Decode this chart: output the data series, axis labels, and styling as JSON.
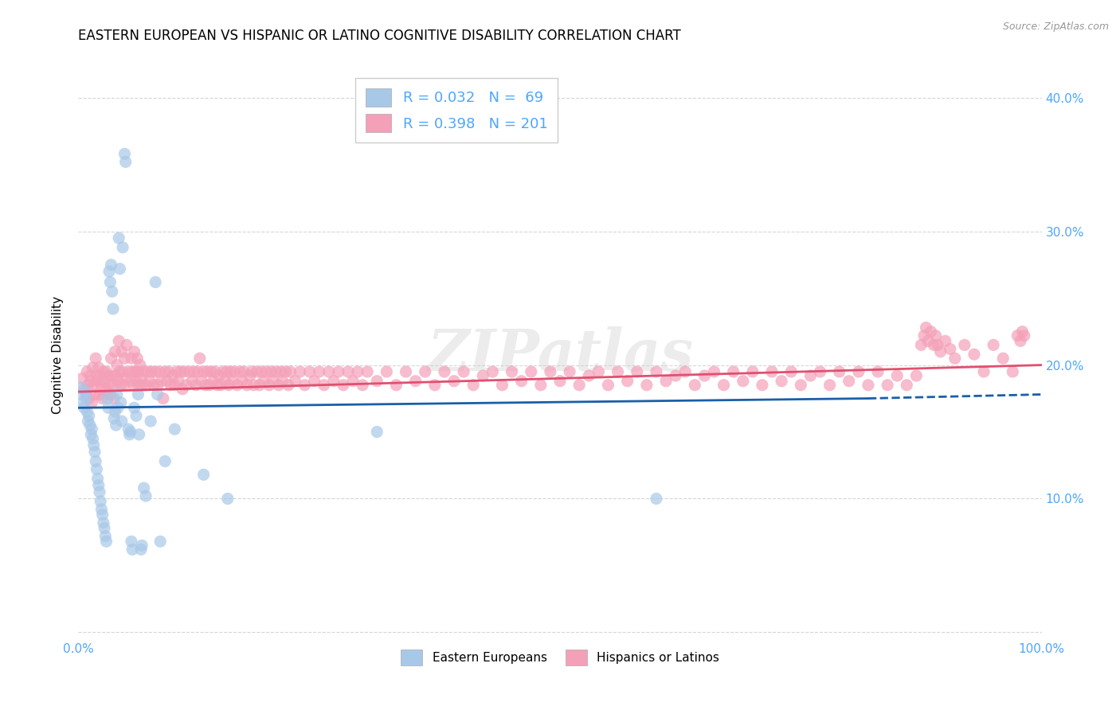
{
  "title": "EASTERN EUROPEAN VS HISPANIC OR LATINO COGNITIVE DISABILITY CORRELATION CHART",
  "source": "Source: ZipAtlas.com",
  "ylabel": "Cognitive Disability",
  "xlim": [
    0.0,
    1.0
  ],
  "ylim": [
    -0.005,
    0.42
  ],
  "blue_R": 0.032,
  "blue_N": 69,
  "pink_R": 0.398,
  "pink_N": 201,
  "blue_color": "#a8c8e8",
  "pink_color": "#f4a0b8",
  "blue_line_color": "#1a5fa8",
  "pink_line_color": "#e05070",
  "blue_scatter": [
    [
      0.003,
      0.183
    ],
    [
      0.004,
      0.178
    ],
    [
      0.005,
      0.172
    ],
    [
      0.006,
      0.168
    ],
    [
      0.007,
      0.18
    ],
    [
      0.008,
      0.175
    ],
    [
      0.009,
      0.165
    ],
    [
      0.01,
      0.158
    ],
    [
      0.011,
      0.162
    ],
    [
      0.012,
      0.155
    ],
    [
      0.013,
      0.148
    ],
    [
      0.014,
      0.152
    ],
    [
      0.015,
      0.145
    ],
    [
      0.016,
      0.14
    ],
    [
      0.017,
      0.135
    ],
    [
      0.018,
      0.128
    ],
    [
      0.019,
      0.122
    ],
    [
      0.02,
      0.115
    ],
    [
      0.021,
      0.11
    ],
    [
      0.022,
      0.105
    ],
    [
      0.023,
      0.098
    ],
    [
      0.024,
      0.092
    ],
    [
      0.025,
      0.088
    ],
    [
      0.026,
      0.082
    ],
    [
      0.027,
      0.078
    ],
    [
      0.028,
      0.072
    ],
    [
      0.029,
      0.068
    ],
    [
      0.03,
      0.175
    ],
    [
      0.031,
      0.168
    ],
    [
      0.032,
      0.27
    ],
    [
      0.033,
      0.262
    ],
    [
      0.034,
      0.275
    ],
    [
      0.035,
      0.255
    ],
    [
      0.036,
      0.242
    ],
    [
      0.037,
      0.16
    ],
    [
      0.038,
      0.165
    ],
    [
      0.039,
      0.155
    ],
    [
      0.04,
      0.178
    ],
    [
      0.041,
      0.168
    ],
    [
      0.042,
      0.295
    ],
    [
      0.043,
      0.272
    ],
    [
      0.044,
      0.172
    ],
    [
      0.045,
      0.158
    ],
    [
      0.046,
      0.288
    ],
    [
      0.048,
      0.358
    ],
    [
      0.049,
      0.352
    ],
    [
      0.052,
      0.152
    ],
    [
      0.053,
      0.148
    ],
    [
      0.054,
      0.15
    ],
    [
      0.055,
      0.068
    ],
    [
      0.056,
      0.062
    ],
    [
      0.058,
      0.168
    ],
    [
      0.06,
      0.162
    ],
    [
      0.062,
      0.178
    ],
    [
      0.063,
      0.148
    ],
    [
      0.065,
      0.062
    ],
    [
      0.066,
      0.065
    ],
    [
      0.068,
      0.108
    ],
    [
      0.07,
      0.102
    ],
    [
      0.075,
      0.158
    ],
    [
      0.08,
      0.262
    ],
    [
      0.082,
      0.178
    ],
    [
      0.085,
      0.068
    ],
    [
      0.09,
      0.128
    ],
    [
      0.1,
      0.152
    ],
    [
      0.13,
      0.118
    ],
    [
      0.155,
      0.1
    ],
    [
      0.31,
      0.15
    ],
    [
      0.6,
      0.1
    ]
  ],
  "pink_scatter": [
    [
      0.004,
      0.19
    ],
    [
      0.006,
      0.182
    ],
    [
      0.008,
      0.178
    ],
    [
      0.009,
      0.195
    ],
    [
      0.01,
      0.185
    ],
    [
      0.011,
      0.175
    ],
    [
      0.012,
      0.192
    ],
    [
      0.013,
      0.188
    ],
    [
      0.014,
      0.172
    ],
    [
      0.015,
      0.198
    ],
    [
      0.016,
      0.185
    ],
    [
      0.017,
      0.178
    ],
    [
      0.018,
      0.205
    ],
    [
      0.019,
      0.192
    ],
    [
      0.02,
      0.188
    ],
    [
      0.021,
      0.198
    ],
    [
      0.022,
      0.178
    ],
    [
      0.023,
      0.192
    ],
    [
      0.024,
      0.185
    ],
    [
      0.025,
      0.175
    ],
    [
      0.026,
      0.195
    ],
    [
      0.027,
      0.188
    ],
    [
      0.028,
      0.182
    ],
    [
      0.029,
      0.195
    ],
    [
      0.03,
      0.178
    ],
    [
      0.031,
      0.192
    ],
    [
      0.032,
      0.185
    ],
    [
      0.033,
      0.178
    ],
    [
      0.034,
      0.205
    ],
    [
      0.035,
      0.192
    ],
    [
      0.036,
      0.185
    ],
    [
      0.037,
      0.175
    ],
    [
      0.038,
      0.21
    ],
    [
      0.039,
      0.192
    ],
    [
      0.04,
      0.2
    ],
    [
      0.041,
      0.188
    ],
    [
      0.042,
      0.218
    ],
    [
      0.043,
      0.195
    ],
    [
      0.044,
      0.185
    ],
    [
      0.045,
      0.21
    ],
    [
      0.046,
      0.195
    ],
    [
      0.047,
      0.185
    ],
    [
      0.048,
      0.205
    ],
    [
      0.049,
      0.19
    ],
    [
      0.05,
      0.215
    ],
    [
      0.052,
      0.195
    ],
    [
      0.054,
      0.188
    ],
    [
      0.055,
      0.205
    ],
    [
      0.056,
      0.195
    ],
    [
      0.057,
      0.185
    ],
    [
      0.058,
      0.21
    ],
    [
      0.059,
      0.195
    ],
    [
      0.06,
      0.188
    ],
    [
      0.061,
      0.205
    ],
    [
      0.062,
      0.195
    ],
    [
      0.063,
      0.185
    ],
    [
      0.064,
      0.2
    ],
    [
      0.065,
      0.19
    ],
    [
      0.066,
      0.185
    ],
    [
      0.068,
      0.195
    ],
    [
      0.07,
      0.185
    ],
    [
      0.072,
      0.195
    ],
    [
      0.074,
      0.188
    ],
    [
      0.076,
      0.195
    ],
    [
      0.078,
      0.185
    ],
    [
      0.08,
      0.195
    ],
    [
      0.082,
      0.185
    ],
    [
      0.084,
      0.195
    ],
    [
      0.086,
      0.188
    ],
    [
      0.088,
      0.175
    ],
    [
      0.09,
      0.195
    ],
    [
      0.092,
      0.188
    ],
    [
      0.094,
      0.195
    ],
    [
      0.096,
      0.185
    ],
    [
      0.098,
      0.192
    ],
    [
      0.1,
      0.185
    ],
    [
      0.102,
      0.195
    ],
    [
      0.104,
      0.188
    ],
    [
      0.106,
      0.195
    ],
    [
      0.108,
      0.182
    ],
    [
      0.11,
      0.195
    ],
    [
      0.112,
      0.185
    ],
    [
      0.115,
      0.195
    ],
    [
      0.118,
      0.188
    ],
    [
      0.12,
      0.195
    ],
    [
      0.122,
      0.185
    ],
    [
      0.124,
      0.195
    ],
    [
      0.126,
      0.205
    ],
    [
      0.128,
      0.188
    ],
    [
      0.13,
      0.195
    ],
    [
      0.132,
      0.185
    ],
    [
      0.134,
      0.195
    ],
    [
      0.136,
      0.185
    ],
    [
      0.138,
      0.195
    ],
    [
      0.14,
      0.188
    ],
    [
      0.142,
      0.195
    ],
    [
      0.144,
      0.185
    ],
    [
      0.146,
      0.192
    ],
    [
      0.148,
      0.185
    ],
    [
      0.15,
      0.195
    ],
    [
      0.152,
      0.188
    ],
    [
      0.154,
      0.195
    ],
    [
      0.156,
      0.185
    ],
    [
      0.158,
      0.195
    ],
    [
      0.16,
      0.188
    ],
    [
      0.162,
      0.195
    ],
    [
      0.165,
      0.185
    ],
    [
      0.168,
      0.195
    ],
    [
      0.17,
      0.188
    ],
    [
      0.172,
      0.195
    ],
    [
      0.175,
      0.185
    ],
    [
      0.178,
      0.192
    ],
    [
      0.18,
      0.195
    ],
    [
      0.182,
      0.185
    ],
    [
      0.185,
      0.195
    ],
    [
      0.188,
      0.185
    ],
    [
      0.19,
      0.195
    ],
    [
      0.192,
      0.188
    ],
    [
      0.195,
      0.195
    ],
    [
      0.198,
      0.185
    ],
    [
      0.2,
      0.195
    ],
    [
      0.202,
      0.188
    ],
    [
      0.205,
      0.195
    ],
    [
      0.208,
      0.185
    ],
    [
      0.21,
      0.195
    ],
    [
      0.212,
      0.188
    ],
    [
      0.215,
      0.195
    ],
    [
      0.218,
      0.185
    ],
    [
      0.22,
      0.195
    ],
    [
      0.225,
      0.188
    ],
    [
      0.23,
      0.195
    ],
    [
      0.235,
      0.185
    ],
    [
      0.24,
      0.195
    ],
    [
      0.245,
      0.188
    ],
    [
      0.25,
      0.195
    ],
    [
      0.255,
      0.185
    ],
    [
      0.26,
      0.195
    ],
    [
      0.265,
      0.188
    ],
    [
      0.27,
      0.195
    ],
    [
      0.275,
      0.185
    ],
    [
      0.28,
      0.195
    ],
    [
      0.285,
      0.188
    ],
    [
      0.29,
      0.195
    ],
    [
      0.295,
      0.185
    ],
    [
      0.3,
      0.195
    ],
    [
      0.31,
      0.188
    ],
    [
      0.32,
      0.195
    ],
    [
      0.33,
      0.185
    ],
    [
      0.34,
      0.195
    ],
    [
      0.35,
      0.188
    ],
    [
      0.36,
      0.195
    ],
    [
      0.37,
      0.185
    ],
    [
      0.38,
      0.195
    ],
    [
      0.39,
      0.188
    ],
    [
      0.4,
      0.195
    ],
    [
      0.41,
      0.185
    ],
    [
      0.42,
      0.192
    ],
    [
      0.43,
      0.195
    ],
    [
      0.44,
      0.185
    ],
    [
      0.45,
      0.195
    ],
    [
      0.46,
      0.188
    ],
    [
      0.47,
      0.195
    ],
    [
      0.48,
      0.185
    ],
    [
      0.49,
      0.195
    ],
    [
      0.5,
      0.188
    ],
    [
      0.51,
      0.195
    ],
    [
      0.52,
      0.185
    ],
    [
      0.53,
      0.192
    ],
    [
      0.54,
      0.195
    ],
    [
      0.55,
      0.185
    ],
    [
      0.56,
      0.195
    ],
    [
      0.57,
      0.188
    ],
    [
      0.58,
      0.195
    ],
    [
      0.59,
      0.185
    ],
    [
      0.6,
      0.195
    ],
    [
      0.61,
      0.188
    ],
    [
      0.62,
      0.192
    ],
    [
      0.63,
      0.195
    ],
    [
      0.64,
      0.185
    ],
    [
      0.65,
      0.192
    ],
    [
      0.66,
      0.195
    ],
    [
      0.67,
      0.185
    ],
    [
      0.68,
      0.195
    ],
    [
      0.69,
      0.188
    ],
    [
      0.7,
      0.195
    ],
    [
      0.71,
      0.185
    ],
    [
      0.72,
      0.195
    ],
    [
      0.73,
      0.188
    ],
    [
      0.74,
      0.195
    ],
    [
      0.75,
      0.185
    ],
    [
      0.76,
      0.192
    ],
    [
      0.77,
      0.195
    ],
    [
      0.78,
      0.185
    ],
    [
      0.79,
      0.195
    ],
    [
      0.8,
      0.188
    ],
    [
      0.81,
      0.195
    ],
    [
      0.82,
      0.185
    ],
    [
      0.83,
      0.195
    ],
    [
      0.84,
      0.185
    ],
    [
      0.85,
      0.192
    ],
    [
      0.86,
      0.185
    ],
    [
      0.87,
      0.192
    ],
    [
      0.875,
      0.215
    ],
    [
      0.878,
      0.222
    ],
    [
      0.88,
      0.228
    ],
    [
      0.882,
      0.218
    ],
    [
      0.885,
      0.225
    ],
    [
      0.888,
      0.215
    ],
    [
      0.89,
      0.222
    ],
    [
      0.892,
      0.215
    ],
    [
      0.895,
      0.21
    ],
    [
      0.9,
      0.218
    ],
    [
      0.905,
      0.212
    ],
    [
      0.91,
      0.205
    ],
    [
      0.92,
      0.215
    ],
    [
      0.93,
      0.208
    ],
    [
      0.94,
      0.195
    ],
    [
      0.95,
      0.215
    ],
    [
      0.96,
      0.205
    ],
    [
      0.97,
      0.195
    ],
    [
      0.975,
      0.222
    ],
    [
      0.978,
      0.218
    ],
    [
      0.98,
      0.225
    ],
    [
      0.982,
      0.222
    ]
  ],
  "blue_trendline_solid": [
    [
      0.0,
      0.168
    ],
    [
      0.82,
      0.175
    ]
  ],
  "blue_trendline_dashed": [
    [
      0.82,
      0.175
    ],
    [
      1.0,
      0.178
    ]
  ],
  "pink_trendline": [
    [
      0.0,
      0.18
    ],
    [
      1.0,
      0.2
    ]
  ],
  "watermark": "ZIPatlas",
  "background_color": "#ffffff",
  "grid_color": "#cccccc",
  "title_fontsize": 12,
  "legend_fontsize": 13,
  "axis_fontsize": 11,
  "tick_color": "#4da6ff",
  "yticks": [
    0.0,
    0.1,
    0.2,
    0.3,
    0.4
  ],
  "ytick_labels_right": [
    "",
    "10.0%",
    "20.0%",
    "30.0%",
    "40.0%"
  ],
  "xtick_positions": [
    0.0,
    0.25,
    0.5,
    0.75,
    1.0
  ],
  "xtick_labels": [
    "0.0%",
    "",
    "",
    "",
    "100.0%"
  ]
}
